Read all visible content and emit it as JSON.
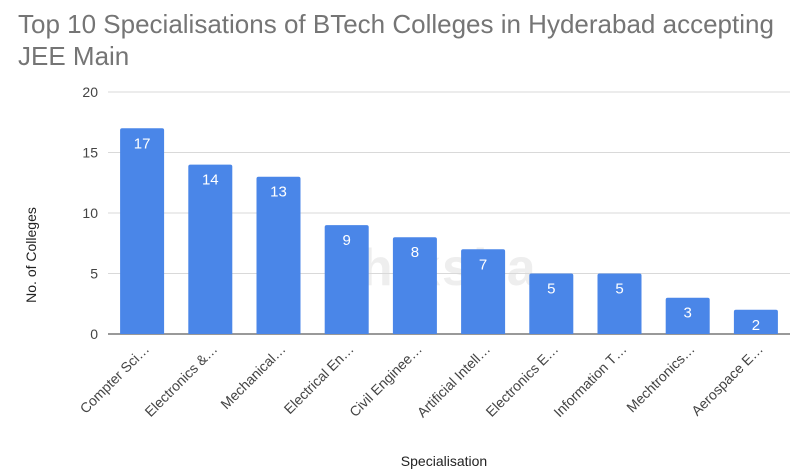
{
  "watermark": "shiksha",
  "chart_data": {
    "type": "bar",
    "title": "Top 10 Specialisations of BTech Colleges in Hyderabad accepting JEE Main",
    "xlabel": "Specialisation",
    "ylabel": "No. of Colleges",
    "ylim": [
      0,
      20
    ],
    "yticks": [
      0,
      5,
      10,
      15,
      20
    ],
    "grid": true,
    "color": "#4a86e8",
    "categories": [
      "Compter Sci…",
      "Electronics &…",
      "Mechanical…",
      "Electrical En…",
      "Civil Enginee…",
      "Artificial Intell…",
      "Electronics E…",
      "Information T…",
      "Mechtronics…",
      "Aerospace E…"
    ],
    "values": [
      17,
      14,
      13,
      9,
      8,
      7,
      5,
      5,
      3,
      2
    ]
  }
}
